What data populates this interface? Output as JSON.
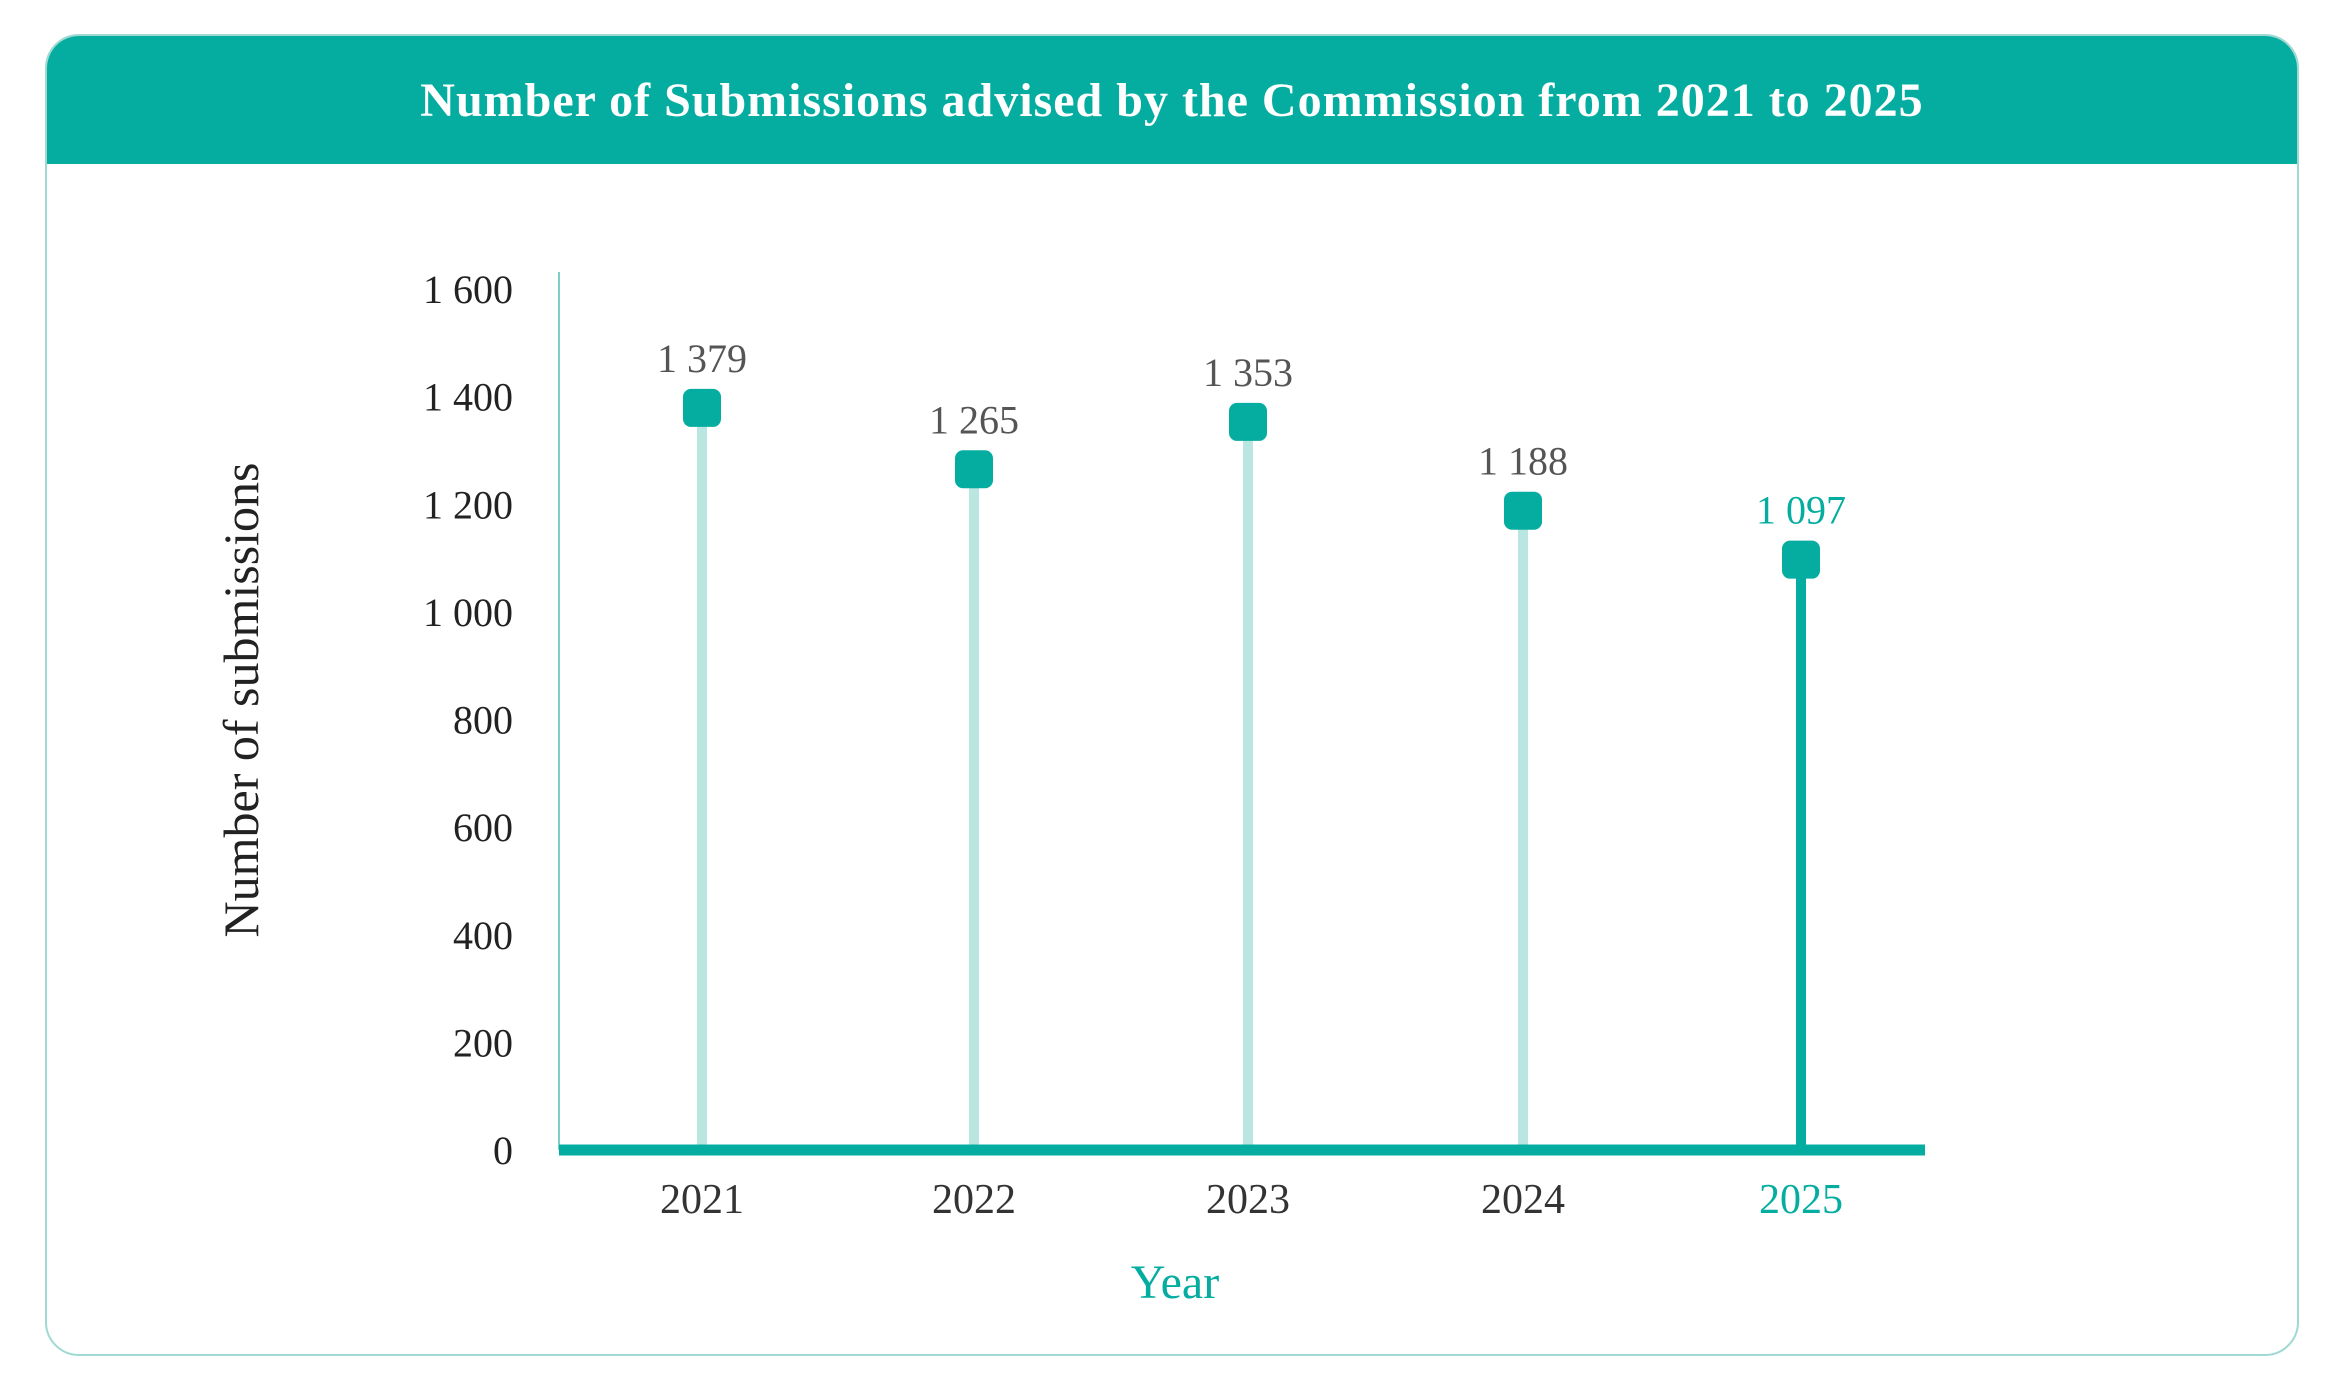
{
  "chart_data": {
    "type": "lollipop",
    "title": "Number of Submissions advised by the Commission from 2021 to 2025",
    "xlabel": "Year",
    "ylabel": "Number of submissions",
    "categories": [
      "2021",
      "2022",
      "2023",
      "2024",
      "2025"
    ],
    "values": [
      1379,
      1265,
      1353,
      1188,
      1097
    ],
    "value_labels": [
      "1 379",
      "1 265",
      "1 353",
      "1 188",
      "1 097"
    ],
    "ylim": [
      0,
      1600
    ],
    "yticks": [
      0,
      200,
      400,
      600,
      800,
      1000,
      1200,
      1400,
      1600
    ],
    "ytick_labels": [
      "0",
      "200",
      "400",
      "600",
      "800",
      "1 000",
      "1 200",
      "1 400",
      "1 600"
    ],
    "highlight_index": 4,
    "grid": false,
    "legend": "none"
  },
  "colors": {
    "accent": "#05ada0",
    "stem_light": "#b9e6e1",
    "text_dark": "#555555",
    "axis_label": "#222222",
    "border": "#9fd9d2"
  }
}
